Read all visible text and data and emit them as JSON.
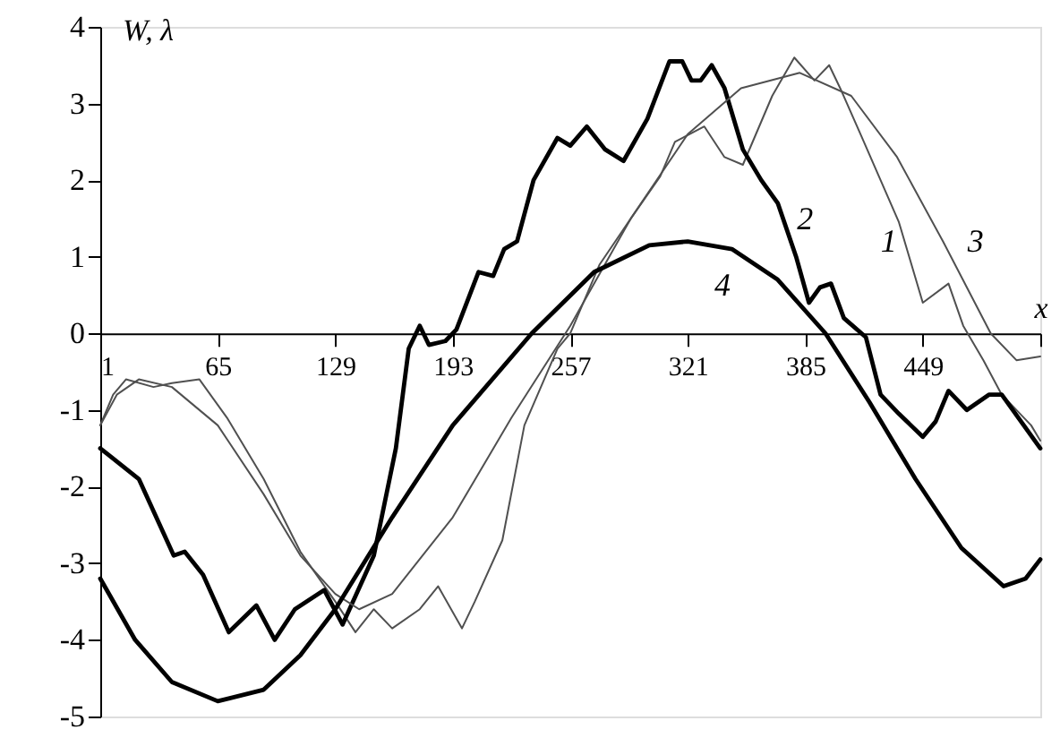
{
  "chart_data": {
    "type": "line",
    "xlabel": "x",
    "ylabel": "W, λ",
    "xlim": [
      1,
      513
    ],
    "ylim": [
      -5,
      4
    ],
    "xticks": [
      1,
      65,
      129,
      193,
      257,
      321,
      385,
      449,
      {
        "value": 513,
        "label": null
      }
    ],
    "yticks": [
      -5,
      -4,
      -3,
      -2,
      -1,
      0,
      1,
      2,
      3,
      4
    ],
    "grid": false,
    "marker": "none",
    "line_style": "solid",
    "series": [
      {
        "name": "1",
        "color": "#505050",
        "x": [
          1,
          8,
          15,
          30,
          40,
          55,
          70,
          90,
          110,
          129,
          140,
          150,
          160,
          175,
          185,
          198,
          205,
          220,
          232,
          250,
          257,
          273,
          290,
          306,
          314,
          330,
          341,
          351,
          367,
          379,
          390,
          398,
          404,
          416,
          426,
          436,
          449,
          463,
          471,
          482,
          492,
          508,
          513
        ],
        "values": [
          -1.2,
          -0.8,
          -0.6,
          -0.7,
          -0.65,
          -0.6,
          -1.1,
          -1.9,
          -2.85,
          -3.5,
          -3.9,
          -3.6,
          -3.85,
          -3.6,
          -3.3,
          -3.85,
          -3.5,
          -2.7,
          -1.2,
          -0.2,
          0.0,
          0.9,
          1.5,
          2.05,
          2.5,
          2.7,
          2.3,
          2.2,
          3.1,
          3.6,
          3.3,
          3.5,
          3.2,
          2.55,
          2.0,
          1.45,
          0.4,
          0.65,
          0.1,
          -0.35,
          -0.8,
          -1.2,
          -1.4
        ]
      },
      {
        "name": "2",
        "color": "#000000",
        "x": [
          1,
          22,
          41,
          47,
          57,
          71,
          86,
          96,
          107,
          123,
          133,
          150,
          162,
          169,
          175,
          180,
          189,
          195,
          207,
          215,
          221,
          228,
          237,
          250,
          257,
          266,
          276,
          286,
          299,
          311,
          318,
          323,
          328,
          334,
          341,
          351,
          361,
          370,
          380,
          387,
          393,
          399,
          406,
          418,
          426,
          436,
          449,
          456,
          463,
          473,
          485,
          492,
          504,
          513
        ],
        "values": [
          -1.5,
          -1.9,
          -2.9,
          -2.85,
          -3.15,
          -3.9,
          -3.55,
          -4.0,
          -3.6,
          -3.35,
          -3.8,
          -2.9,
          -1.5,
          -0.2,
          0.1,
          -0.15,
          -0.1,
          0.05,
          0.8,
          0.75,
          1.1,
          1.2,
          2.0,
          2.55,
          2.45,
          2.7,
          2.4,
          2.25,
          2.8,
          3.55,
          3.55,
          3.3,
          3.3,
          3.5,
          3.2,
          2.4,
          2.0,
          1.7,
          1.0,
          0.4,
          0.6,
          0.65,
          0.2,
          -0.05,
          -0.8,
          -1.05,
          -1.35,
          -1.15,
          -0.75,
          -1.0,
          -0.8,
          -0.8,
          -1.2,
          -1.5
        ]
      },
      {
        "name": "3",
        "color": "#505050",
        "x": [
          1,
          10,
          22,
          40,
          65,
          90,
          110,
          129,
          142,
          160,
          193,
          225,
          257,
          290,
          321,
          350,
          382,
          410,
          435,
          460,
          486,
          500,
          513
        ],
        "values": [
          -1.2,
          -0.8,
          -0.6,
          -0.7,
          -1.2,
          -2.1,
          -2.9,
          -3.4,
          -3.6,
          -3.4,
          -2.4,
          -1.1,
          0.1,
          1.5,
          2.6,
          3.2,
          3.4,
          3.1,
          2.3,
          1.2,
          0.0,
          -0.35,
          -0.3
        ]
      },
      {
        "name": "4",
        "color": "#000000",
        "x": [
          1,
          20,
          40,
          65,
          90,
          110,
          129,
          160,
          193,
          236,
          270,
          300,
          321,
          345,
          370,
          396,
          420,
          445,
          470,
          493,
          505,
          513
        ],
        "values": [
          -3.2,
          -4.0,
          -4.55,
          -4.8,
          -4.65,
          -4.2,
          -3.6,
          -2.4,
          -1.2,
          0.0,
          0.8,
          1.15,
          1.2,
          1.1,
          0.7,
          0.0,
          -0.9,
          -1.9,
          -2.8,
          -3.3,
          -3.2,
          -2.95
        ]
      }
    ]
  }
}
